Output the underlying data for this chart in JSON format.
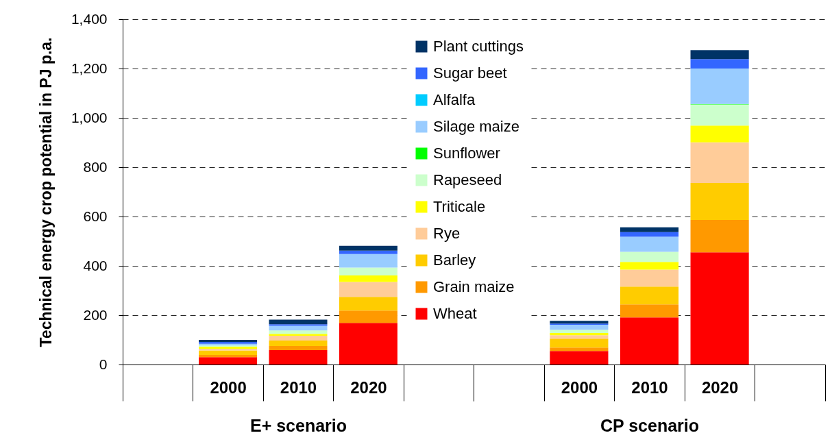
{
  "chart_data": [
    {
      "type": "bar",
      "stacked": true,
      "xlabel": "E+ scenario",
      "ylabel": "Technical energy crop potential in PJ p.a.",
      "categories": [
        null,
        "2000",
        "2010",
        "2020",
        null
      ],
      "ylim": [
        0,
        1400
      ],
      "yticks": [
        0,
        200,
        400,
        600,
        800,
        {
          "value": 1000,
          "label": "1,000"
        },
        {
          "value": 1200,
          "label": "1,200"
        },
        {
          "value": 1400,
          "label": "1,400"
        }
      ],
      "grid": "y",
      "series": [
        {
          "color": "#ff0000",
          "values": [
            null,
            30,
            58,
            169,
            null
          ]
        },
        {
          "color": "#ff9900",
          "values": [
            null,
            9,
            17,
            50,
            null
          ]
        },
        {
          "color": "#ffcc00",
          "values": [
            null,
            18,
            22,
            55,
            null
          ]
        },
        {
          "color": "#ffcc99",
          "values": [
            null,
            7,
            20,
            61,
            null
          ]
        },
        {
          "color": "#ffff00",
          "values": [
            null,
            8,
            7,
            26,
            null
          ]
        },
        {
          "color": "#ccffcc",
          "values": [
            null,
            5,
            14,
            32,
            null
          ]
        },
        {
          "color": "#00ff00",
          "values": [
            null,
            null,
            null,
            null,
            null
          ]
        },
        {
          "color": "#99ccff",
          "values": [
            null,
            7,
            19,
            55,
            null
          ]
        },
        {
          "color": "#00ccff",
          "values": [
            null,
            null,
            null,
            null,
            null
          ]
        },
        {
          "color": "#3366ff",
          "values": [
            null,
            8,
            6,
            14,
            null
          ]
        },
        {
          "color": "#003366",
          "values": [
            null,
            8,
            19,
            19,
            null
          ]
        }
      ]
    },
    {
      "type": "bar",
      "stacked": true,
      "xlabel": "CP scenario",
      "tick_labels": "x",
      "categories": [
        null,
        "2000",
        "2010",
        "2020",
        null
      ],
      "ylim": [
        0,
        1400
      ],
      "yticks": [
        0,
        200,
        400,
        600,
        800,
        1000,
        1200,
        1400
      ],
      "grid": "y",
      "legend": "top left",
      "series": [
        {
          "name": "Wheat",
          "color": "#ff0000",
          "values": [
            null,
            55,
            191,
            455,
            null
          ]
        },
        {
          "name": "Grain maize",
          "color": "#ff9900",
          "values": [
            null,
            14,
            53,
            131,
            null
          ]
        },
        {
          "name": "Barley",
          "color": "#ffcc00",
          "values": [
            null,
            36,
            72,
            150,
            null
          ]
        },
        {
          "name": "Rye",
          "color": "#ffcc99",
          "values": [
            null,
            14,
            69,
            165,
            null
          ]
        },
        {
          "name": "Triticale",
          "color": "#ffff00",
          "values": [
            null,
            9,
            31,
            68,
            null
          ]
        },
        {
          "name": "Rapeseed",
          "color": "#ccffcc",
          "values": [
            null,
            13,
            41,
            85,
            null
          ]
        },
        {
          "name": "Sunflower",
          "color": "#00ff00",
          "values": [
            null,
            null,
            null,
            2,
            null
          ]
        },
        {
          "name": "Silage maize",
          "color": "#99ccff",
          "values": [
            null,
            20,
            61,
            144,
            null
          ]
        },
        {
          "name": "Alfalfa",
          "color": "#00ccff",
          "values": [
            null,
            null,
            null,
            null,
            null
          ]
        },
        {
          "name": "Sugar beet",
          "color": "#3366ff",
          "values": [
            null,
            5,
            19,
            38,
            null
          ]
        },
        {
          "name": "Plant cuttings",
          "color": "#003366",
          "values": [
            null,
            11,
            19,
            36,
            null
          ]
        }
      ]
    }
  ]
}
